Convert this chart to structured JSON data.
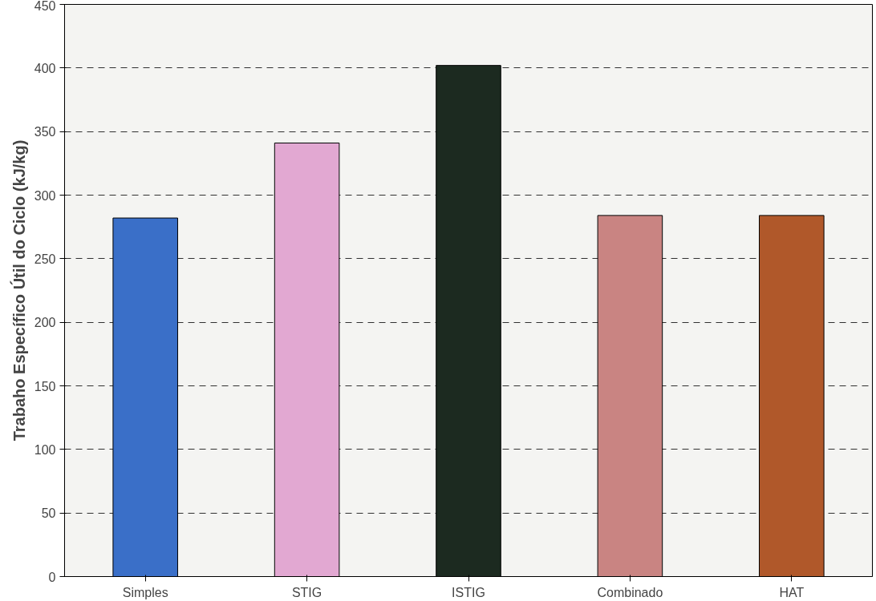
{
  "chart_data": {
    "type": "bar",
    "ylabel": "Trabaho Específico Útil do Ciclo (kJ/kg)",
    "categories": [
      "Simples",
      "STIG",
      "ISTIG",
      "Combinado",
      "HAT"
    ],
    "values": [
      282,
      341,
      402,
      284,
      284
    ],
    "colors": [
      "#3a6fc8",
      "#e2a8d2",
      "#1c2a20",
      "#c98482",
      "#b0582a"
    ],
    "ylim": [
      0,
      450
    ],
    "yticks": [
      0,
      50,
      100,
      150,
      200,
      250,
      300,
      350,
      400,
      450
    ],
    "grid": "y"
  }
}
